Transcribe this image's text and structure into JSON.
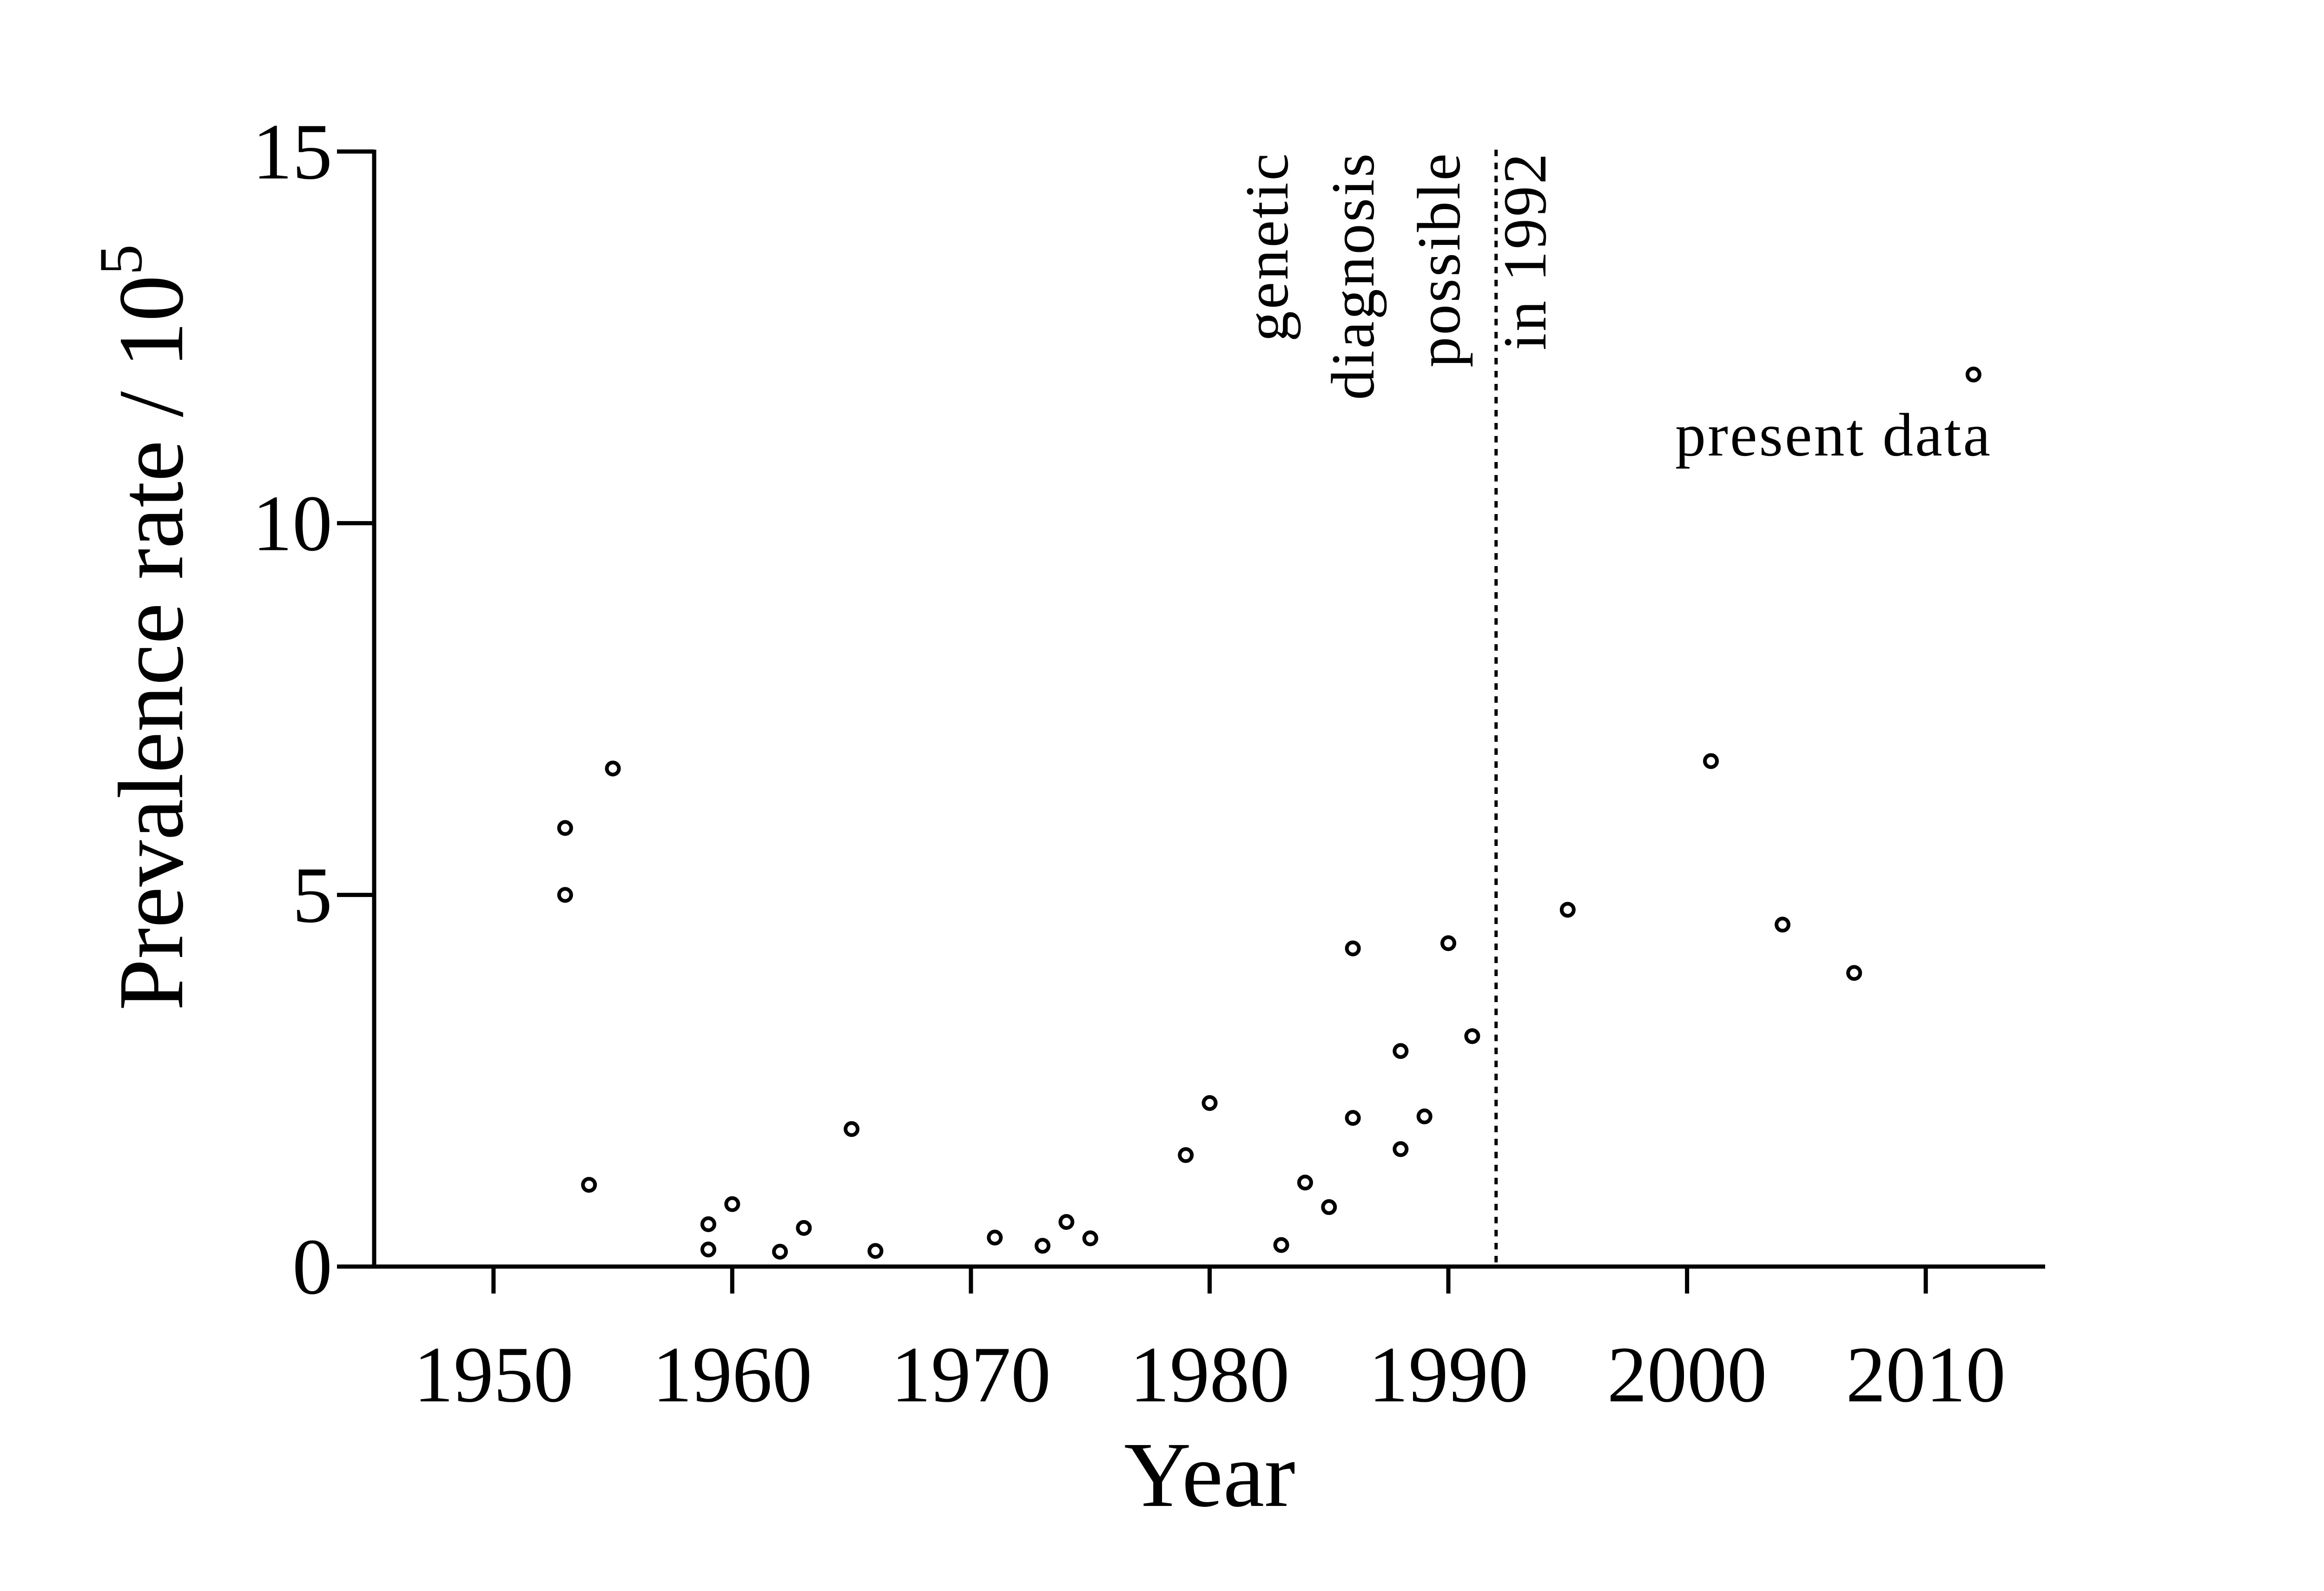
{
  "chart_data": {
    "type": "scatter",
    "title": "",
    "xlabel": "Year",
    "ylabel": "Prevalence rate / 10",
    "ylabel_superscript": "5",
    "xlim": [
      1945,
      2015
    ],
    "ylim": [
      0,
      15
    ],
    "x_ticks": [
      1950,
      1960,
      1970,
      1980,
      1990,
      2000,
      2010
    ],
    "x_tick_labels": [
      "1950",
      "1960",
      "1970",
      "1980",
      "1990",
      "2000",
      "2010"
    ],
    "y_ticks": [
      0,
      5,
      10,
      15
    ],
    "y_tick_labels": [
      "0",
      "5",
      "10",
      "15"
    ],
    "grid": false,
    "legend": "none",
    "marker": "open-circle",
    "colors": {
      "marker": "#000000",
      "axis": "#000000",
      "reference_line": "#000000"
    },
    "series": [
      {
        "points": [
          [
            1953,
            5.9
          ],
          [
            1953,
            5.0
          ],
          [
            1954,
            1.1
          ],
          [
            1955,
            6.7
          ],
          [
            1959,
            0.57
          ],
          [
            1959,
            0.23
          ],
          [
            1960,
            0.84
          ],
          [
            1962,
            0.2
          ],
          [
            1963,
            0.52
          ],
          [
            1965,
            1.85
          ],
          [
            1966,
            0.21
          ],
          [
            1971,
            0.39
          ],
          [
            1973,
            0.28
          ],
          [
            1974,
            0.6
          ],
          [
            1975,
            0.38
          ],
          [
            1979,
            1.5
          ],
          [
            1980,
            2.2
          ],
          [
            1983,
            0.29
          ],
          [
            1984,
            1.13
          ],
          [
            1985,
            0.8
          ],
          [
            1986,
            4.28
          ],
          [
            1986,
            2.0
          ],
          [
            1988,
            2.9
          ],
          [
            1988,
            1.58
          ],
          [
            1989,
            2.02
          ],
          [
            1990,
            4.35
          ],
          [
            1991,
            3.1
          ],
          [
            1995,
            4.8
          ],
          [
            2001,
            6.8
          ],
          [
            2004,
            4.6
          ],
          [
            2007,
            3.95
          ],
          [
            2012,
            12.0
          ]
        ]
      }
    ],
    "reference_lines": [
      {
        "orientation": "vertical",
        "x": 1992,
        "style": "dotted"
      }
    ],
    "annotations": [
      {
        "text_lines": [
          "genetic",
          "diagnosis",
          "possible",
          "in 1992"
        ],
        "orientation": "vertical"
      },
      {
        "text": "present data"
      }
    ]
  }
}
